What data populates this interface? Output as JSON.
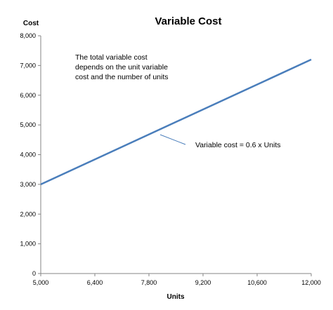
{
  "chart_data": {
    "type": "line",
    "title": "Variable  Cost",
    "xlabel": "Units",
    "ylabel": "Cost",
    "xlim": [
      5000,
      12000
    ],
    "ylim": [
      0,
      8000
    ],
    "x_ticks": [
      "5,000",
      "6,400",
      "7,800",
      "9,200",
      "10,600",
      "12,000"
    ],
    "y_ticks": [
      "0",
      "1,000",
      "2,000",
      "3,000",
      "4,000",
      "5,000",
      "6,000",
      "7,000",
      "8,000"
    ],
    "grid": false,
    "series": [
      {
        "x": [
          5000,
          12000
        ],
        "y": [
          3000,
          7200
        ],
        "color": "#4a7ebb"
      }
    ],
    "annotations": {
      "description": [
        "The total variable cost",
        "depends on the unit variable",
        "cost and the number of units"
      ],
      "line_label": "Variable cost = 0.6 x Units"
    }
  }
}
